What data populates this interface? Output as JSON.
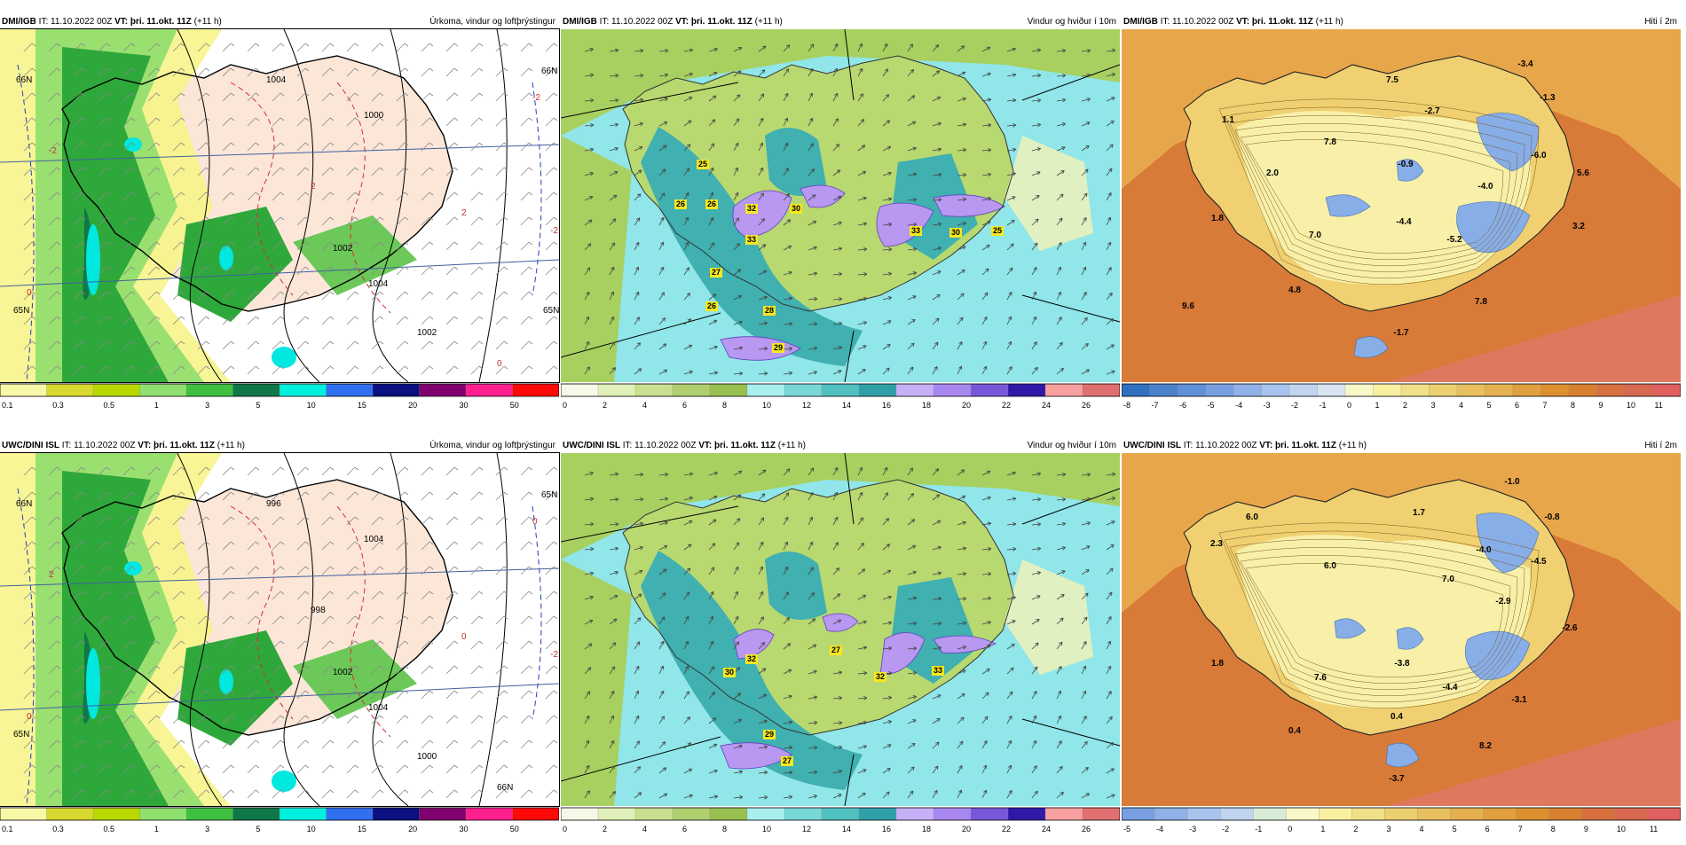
{
  "rows": [
    {
      "model": "DMI/IGB",
      "it_label": "IT:",
      "it": "11.10.2022 00Z",
      "vt_label": "VT:",
      "vt": "þri. 11.okt. 11Z",
      "lead": "(+11 h)",
      "panels": [
        {
          "title": "Úrkoma, vindur og loftþrýstingur",
          "type": "precip",
          "colorbar": {
            "labels": [
              "0.1",
              "0.3",
              "0.5",
              "1",
              "3",
              "5",
              "10",
              "15",
              "20",
              "30",
              "50"
            ],
            "colors": [
              "#f8f8a8",
              "#d8d830",
              "#b8d800",
              "#90e070",
              "#40c040",
              "#107848",
              "#00f0e0",
              "#3070f0",
              "#0a1080",
              "#800070",
              "#ff2090",
              "#ff0808"
            ]
          },
          "map_labels": [
            "1000",
            "1002",
            "1002",
            "1004",
            "1004",
            "2",
            "2",
            "0",
            "-2",
            "-2",
            "-2",
            "0",
            "66N",
            "66N",
            "65N",
            "65N"
          ]
        },
        {
          "title": "Vindur og hviður í 10m",
          "type": "wind",
          "colorbar": {
            "labels": [
              "0",
              "2",
              "4",
              "6",
              "8",
              "10",
              "12",
              "14",
              "16",
              "18",
              "20",
              "22",
              "24",
              "26"
            ],
            "colors": [
              "#f8f8e8",
              "#e0f0b8",
              "#c8e090",
              "#b0d070",
              "#98c050",
              "#a8f0f0",
              "#78d8d8",
              "#50c0c0",
              "#30a0a8",
              "#c8b0f8",
              "#a888f0",
              "#7858d8",
              "#3018a8",
              "#f8a0a0",
              "#e07070"
            ]
          },
          "gusts": [
            "25",
            "26",
            "26",
            "32",
            "30",
            "33",
            "33",
            "30",
            "25",
            "27",
            "26",
            "28",
            "29"
          ]
        },
        {
          "title": "Hiti í 2m",
          "type": "temp",
          "colorbar": {
            "labels": [
              "-8",
              "-7",
              "-6",
              "-5",
              "-4",
              "-3",
              "-2",
              "-1",
              "0",
              "1",
              "2",
              "3",
              "4",
              "5",
              "6",
              "7",
              "8",
              "9",
              "10",
              "11"
            ],
            "colors": [
              "#3070c0",
              "#4a82cc",
              "#6090d8",
              "#78a0e0",
              "#90b0e8",
              "#a8c4ee",
              "#c0d4f0",
              "#d8e4f0",
              "#f8f8c8",
              "#f8f0a0",
              "#f0e088",
              "#ecd070",
              "#e8c060",
              "#e4b050",
              "#e0a040",
              "#dc9030",
              "#d88030",
              "#d87040",
              "#d86850",
              "#e06060"
            ]
          },
          "temps": [
            "-3.4",
            "7.5",
            "-1.3",
            "1.1",
            "7.8",
            "-2.7",
            "-6.0",
            "5.6",
            "2.0",
            "-0.9",
            "-4.0",
            "1.8",
            "-4.4",
            "3.2",
            "7.0",
            "-5.2",
            "4.8",
            "9.6",
            "7.8",
            "-1.7"
          ]
        }
      ]
    },
    {
      "model": "UWC/DINI ISL",
      "it_label": "IT:",
      "it": "11.10.2022 00Z",
      "vt_label": "VT:",
      "vt": "þri. 11.okt. 11Z",
      "lead": "(+11 h)",
      "panels": [
        {
          "title": "Úrkoma, vindur og loftþrýstingur",
          "type": "precip",
          "colorbar": {
            "labels": [
              "0.1",
              "0.3",
              "0.5",
              "1",
              "3",
              "5",
              "10",
              "15",
              "20",
              "30",
              "50"
            ],
            "colors": [
              "#f8f8a8",
              "#d8d830",
              "#b8d800",
              "#90e070",
              "#40c040",
              "#107848",
              "#00f0e0",
              "#3070f0",
              "#0a1080",
              "#800070",
              "#ff2090",
              "#ff0808"
            ]
          },
          "map_labels": [
            "1004",
            "1002",
            "1000",
            "1004",
            "996",
            "998",
            "0",
            "0",
            "2",
            "-2",
            "0",
            "66N",
            "66N",
            "65N",
            "65N"
          ]
        },
        {
          "title": "Vindur og hviður í 10m",
          "type": "wind",
          "colorbar": {
            "labels": [
              "0",
              "2",
              "4",
              "6",
              "8",
              "10",
              "12",
              "14",
              "16",
              "18",
              "20",
              "22",
              "24",
              "26"
            ],
            "colors": [
              "#f8f8e8",
              "#e0f0b8",
              "#c8e090",
              "#b0d070",
              "#98c050",
              "#a8f0f0",
              "#78d8d8",
              "#50c0c0",
              "#30a0a8",
              "#c8b0f8",
              "#a888f0",
              "#7858d8",
              "#3018a8",
              "#f8a0a0",
              "#e07070"
            ]
          },
          "gusts": [
            "32",
            "30",
            "27",
            "32",
            "33",
            "29",
            "27"
          ]
        },
        {
          "title": "Hiti í 2m",
          "type": "temp",
          "colorbar": {
            "labels": [
              "-5",
              "-4",
              "-3",
              "-2",
              "-1",
              "0",
              "1",
              "2",
              "3",
              "4",
              "5",
              "6",
              "7",
              "8",
              "9",
              "10",
              "11"
            ],
            "colors": [
              "#78a0e0",
              "#90b0e8",
              "#a8c4ee",
              "#c0d4f0",
              "#d8ecd8",
              "#f8f8c8",
              "#f8f0a0",
              "#f0e088",
              "#ecd070",
              "#e8c060",
              "#e4b050",
              "#e0a040",
              "#dc9030",
              "#d88030",
              "#d87040",
              "#d86850",
              "#e06060"
            ]
          },
          "temps": [
            "-1.0",
            "6.0",
            "-0.8",
            "1.7",
            "2.3",
            "-4.0",
            "-4.5",
            "6.0",
            "7.0",
            "-2.9",
            "-2.6",
            "1.8",
            "-3.8",
            "7.6",
            "-4.4",
            "-3.1",
            "0.4",
            "0.4",
            "8.2",
            "-3.7"
          ]
        }
      ]
    }
  ]
}
